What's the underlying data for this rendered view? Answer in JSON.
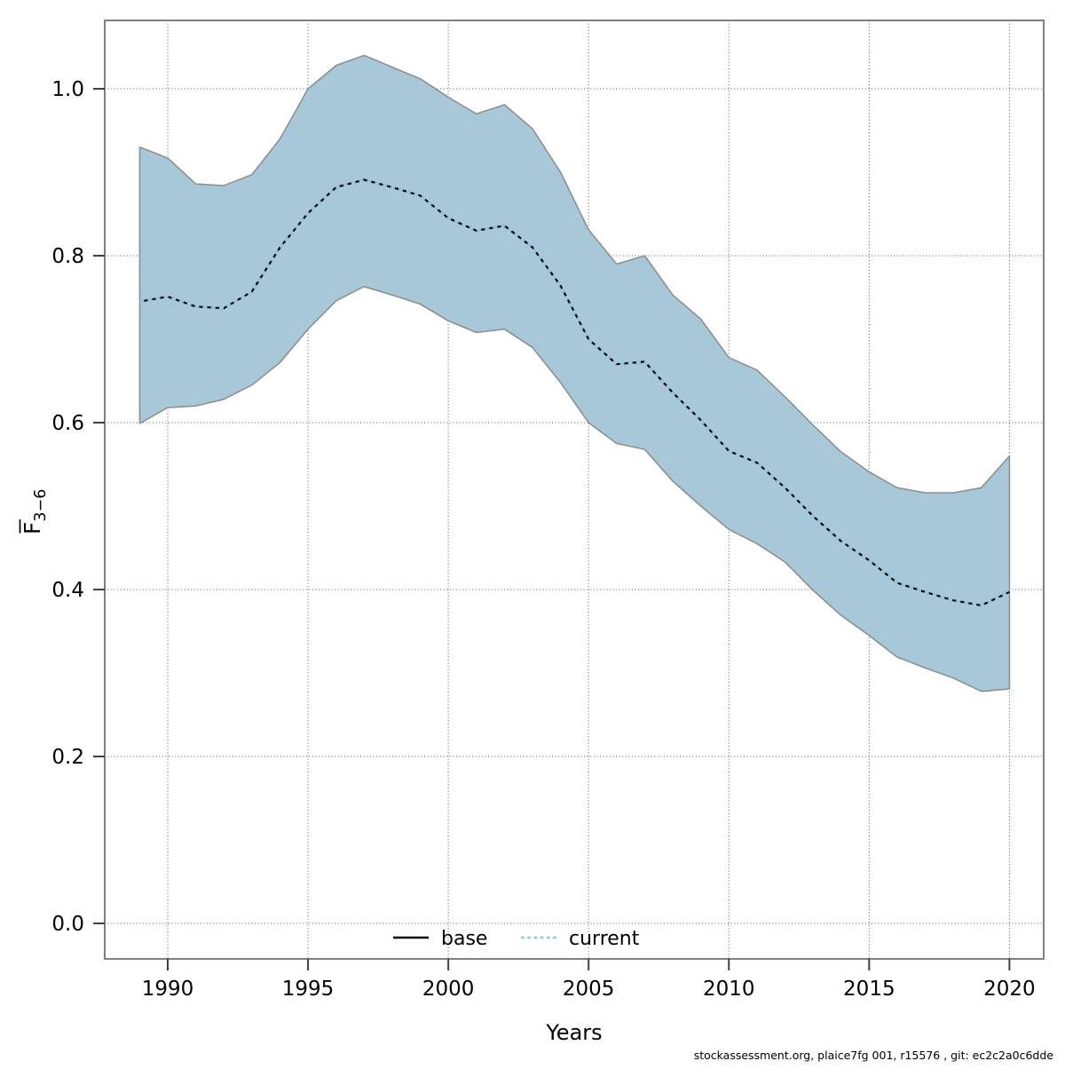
{
  "attribution": "stockassessment.org, plaice7fg 001, r15576 , git: ec2c2a0c6dde",
  "colors": {
    "band_fill": "#a7c8d9",
    "band_edge": "#8f8f8f",
    "base_line": "#000000",
    "current_line": "#94c6e0",
    "grid": "#555555",
    "axis_frame": "#7f7f7f",
    "tick": "#404040",
    "text": "#000000"
  },
  "chart_data": {
    "type": "line",
    "title": "",
    "xlabel": "Years",
    "ylabel": "F̄3−6",
    "ylabel_letter": "F",
    "ylabel_subscript": "3−6",
    "grid": true,
    "xlim": [
      1987.7,
      2021.2
    ],
    "ylim": [
      -0.04,
      1.08
    ],
    "xticks": [
      1990,
      1995,
      2000,
      2005,
      2010,
      2015,
      2020
    ],
    "yticks": [
      "0.0",
      "0.2",
      "0.4",
      "0.6",
      "0.8",
      "1.0"
    ],
    "ytick_values": [
      0.0,
      0.2,
      0.4,
      0.6,
      0.8,
      1.0
    ],
    "x": [
      1989,
      1990,
      1991,
      1992,
      1993,
      1994,
      1995,
      1996,
      1997,
      1998,
      1999,
      2000,
      2001,
      2002,
      2003,
      2004,
      2005,
      2006,
      2007,
      2008,
      2009,
      2010,
      2011,
      2012,
      2013,
      2014,
      2015,
      2016,
      2017,
      2018,
      2019,
      2020
    ],
    "series": [
      {
        "name": "base",
        "line_style": "solid",
        "values": [
          0.745,
          0.751,
          0.739,
          0.737,
          0.757,
          0.81,
          0.851,
          0.882,
          0.891,
          0.882,
          0.872,
          0.845,
          0.83,
          0.836,
          0.81,
          0.764,
          0.7,
          0.67,
          0.673,
          0.636,
          0.603,
          0.566,
          0.552,
          0.522,
          0.488,
          0.458,
          0.435,
          0.408,
          0.397,
          0.387,
          0.381,
          0.397
        ]
      },
      {
        "name": "current",
        "line_style": "dotted",
        "values": [
          0.745,
          0.751,
          0.739,
          0.737,
          0.757,
          0.81,
          0.851,
          0.882,
          0.891,
          0.882,
          0.872,
          0.845,
          0.83,
          0.836,
          0.81,
          0.764,
          0.7,
          0.67,
          0.673,
          0.636,
          0.603,
          0.566,
          0.552,
          0.522,
          0.488,
          0.458,
          0.435,
          0.408,
          0.397,
          0.387,
          0.381,
          0.397
        ]
      }
    ],
    "band": {
      "name": "current-confidence-band",
      "upper": [
        0.93,
        0.917,
        0.886,
        0.884,
        0.897,
        0.94,
        1.0,
        1.028,
        1.04,
        1.026,
        1.012,
        0.99,
        0.97,
        0.981,
        0.952,
        0.9,
        0.831,
        0.79,
        0.8,
        0.753,
        0.724,
        0.678,
        0.663,
        0.631,
        0.597,
        0.565,
        0.541,
        0.522,
        0.516,
        0.516,
        0.522,
        0.56
      ],
      "lower": [
        0.599,
        0.618,
        0.62,
        0.628,
        0.645,
        0.672,
        0.712,
        0.746,
        0.763,
        0.753,
        0.742,
        0.722,
        0.708,
        0.712,
        0.69,
        0.648,
        0.6,
        0.575,
        0.568,
        0.53,
        0.5,
        0.472,
        0.455,
        0.433,
        0.399,
        0.369,
        0.345,
        0.319,
        0.306,
        0.294,
        0.278,
        0.281
      ]
    },
    "legend": {
      "position": "bottom-center-inside",
      "entries": [
        {
          "label": "base"
        },
        {
          "label": "current"
        }
      ]
    }
  }
}
